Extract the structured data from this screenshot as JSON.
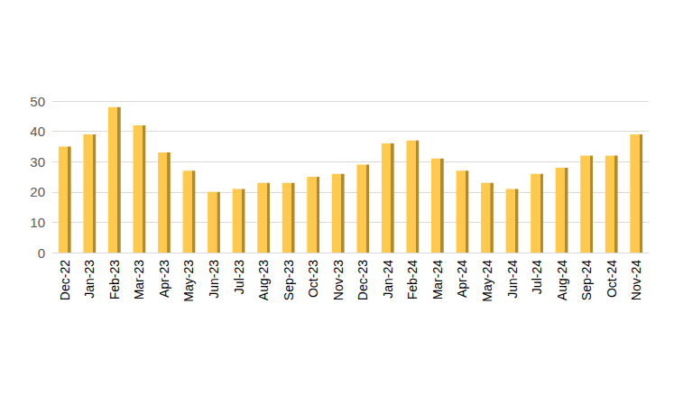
{
  "chart_data": {
    "type": "bar",
    "categories": [
      "Dec-22",
      "Jan-23",
      "Feb-23",
      "Mar-23",
      "Apr-23",
      "May-23",
      "Jun-23",
      "Jul-23",
      "Aug-23",
      "Sep-23",
      "Oct-23",
      "Nov-23",
      "Dec-23",
      "Jan-24",
      "Feb-24",
      "Mar-24",
      "Apr-24",
      "May-24",
      "Jun-24",
      "Jul-24",
      "Aug-24",
      "Sep-24",
      "Oct-24",
      "Nov-24"
    ],
    "values": [
      35,
      39,
      48,
      42,
      33,
      27,
      20,
      21,
      23,
      23,
      25,
      26,
      29,
      36,
      37,
      31,
      27,
      23,
      21,
      26,
      28,
      32,
      32,
      39
    ],
    "color": "#ffc94d",
    "ylim": [
      0,
      50
    ],
    "yticks": [
      0,
      10,
      20,
      30,
      40,
      50
    ],
    "grid": true
  }
}
